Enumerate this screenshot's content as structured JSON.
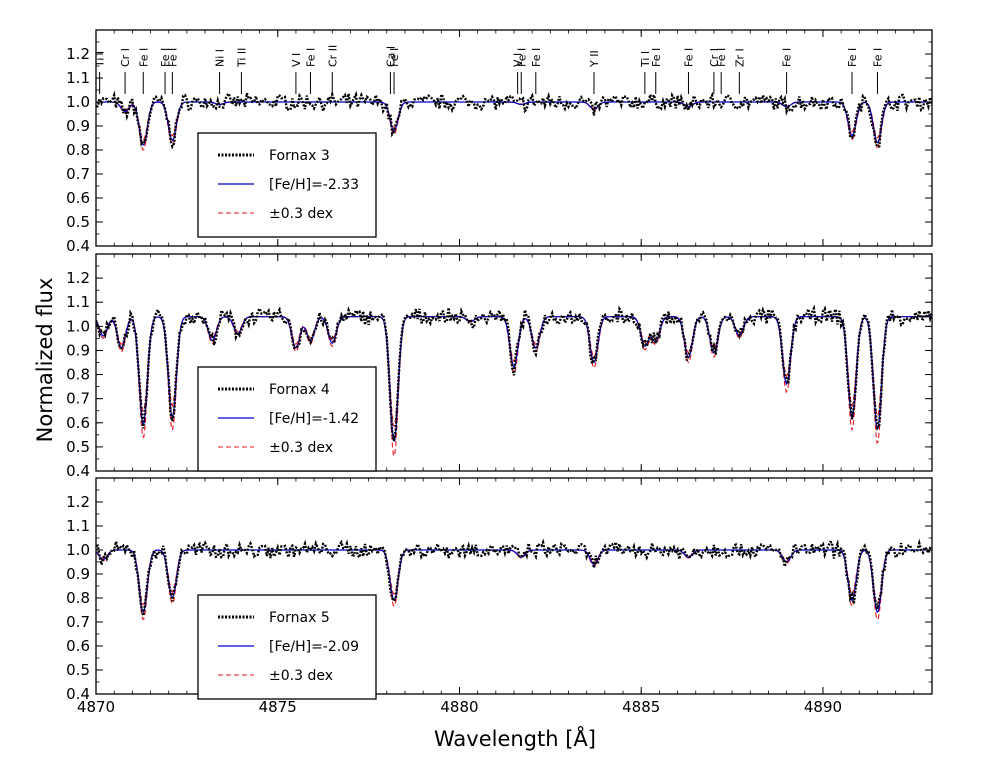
{
  "figure": {
    "xlabel": "Wavelength [Å]",
    "ylabel": "Normalized flux",
    "xlim": [
      4870,
      4893
    ],
    "ylim": [
      0.4,
      1.3
    ],
    "x_ticks": [
      4870,
      4875,
      4880,
      4885,
      4890
    ],
    "y_ticks": [
      0.4,
      0.5,
      0.6,
      0.7,
      0.8,
      0.9,
      1.0,
      1.1,
      1.2
    ]
  },
  "colors": {
    "observed": "#000000",
    "model": "#0000cc",
    "bounds": "#e8141b"
  },
  "line_ids": [
    {
      "wl": 4870.1,
      "label": "Ti I"
    },
    {
      "wl": 4870.8,
      "label": "Cr I"
    },
    {
      "wl": 4871.3,
      "label": "Fe I"
    },
    {
      "wl": 4871.9,
      "label": "Fe I"
    },
    {
      "wl": 4872.1,
      "label": "Fe I"
    },
    {
      "wl": 4873.4,
      "label": "Ni I"
    },
    {
      "wl": 4874.0,
      "label": "Ti II"
    },
    {
      "wl": 4875.5,
      "label": "V I"
    },
    {
      "wl": 4875.9,
      "label": "Fe I"
    },
    {
      "wl": 4876.5,
      "label": "Cr II"
    },
    {
      "wl": 4878.1,
      "label": "Ca I"
    },
    {
      "wl": 4878.2,
      "label": "Fe I"
    },
    {
      "wl": 4881.6,
      "label": "V I"
    },
    {
      "wl": 4881.7,
      "label": "Fe I"
    },
    {
      "wl": 4882.1,
      "label": "Fe I"
    },
    {
      "wl": 4883.7,
      "label": "Y II"
    },
    {
      "wl": 4885.1,
      "label": "Ti I"
    },
    {
      "wl": 4885.4,
      "label": "Fe I"
    },
    {
      "wl": 4886.3,
      "label": "Fe I"
    },
    {
      "wl": 4887.0,
      "label": "Cr I"
    },
    {
      "wl": 4887.2,
      "label": "Fe I"
    },
    {
      "wl": 4887.7,
      "label": "Zr I"
    },
    {
      "wl": 4889.0,
      "label": "Fe I"
    },
    {
      "wl": 4890.8,
      "label": "Fe I"
    },
    {
      "wl": 4891.5,
      "label": "Fe I"
    }
  ],
  "chart_data": [
    {
      "type": "line",
      "panel": "Fornax 3",
      "xlim": [
        4870,
        4893
      ],
      "ylim": [
        0.4,
        1.3
      ],
      "continuum": 1.0,
      "series": [
        {
          "name": "Fornax 3",
          "style": "dotted",
          "color": "#000000",
          "role": "observed"
        },
        {
          "name": "[Fe/H]=-2.33",
          "style": "solid",
          "color": "#0000cc",
          "role": "model"
        },
        {
          "name": "±0.3 dex",
          "style": "dashed",
          "color": "#e8141b",
          "role": "bounds"
        }
      ],
      "features": [
        {
          "wl": 4870.8,
          "min": 0.96
        },
        {
          "wl": 4871.3,
          "min": 0.82
        },
        {
          "wl": 4872.1,
          "min": 0.84
        },
        {
          "wl": 4873.4,
          "min": 0.99
        },
        {
          "wl": 4878.2,
          "min": 0.88
        },
        {
          "wl": 4881.7,
          "min": 0.99
        },
        {
          "wl": 4883.7,
          "min": 0.97
        },
        {
          "wl": 4886.3,
          "min": 0.98
        },
        {
          "wl": 4889.0,
          "min": 0.98
        },
        {
          "wl": 4890.8,
          "min": 0.86
        },
        {
          "wl": 4891.5,
          "min": 0.83
        }
      ]
    },
    {
      "type": "line",
      "panel": "Fornax 4",
      "xlim": [
        4870,
        4893
      ],
      "ylim": [
        0.4,
        1.3
      ],
      "continuum": 1.04,
      "series": [
        {
          "name": "Fornax 4",
          "style": "dotted",
          "color": "#000000",
          "role": "observed"
        },
        {
          "name": "[Fe/H]=-1.42",
          "style": "solid",
          "color": "#0000cc",
          "role": "model"
        },
        {
          "name": "±0.3 dex",
          "style": "dashed",
          "color": "#e8141b",
          "role": "bounds"
        }
      ],
      "features": [
        {
          "wl": 4870.2,
          "min": 0.96
        },
        {
          "wl": 4870.7,
          "min": 0.91
        },
        {
          "wl": 4871.3,
          "min": 0.59
        },
        {
          "wl": 4872.1,
          "min": 0.62
        },
        {
          "wl": 4873.2,
          "min": 0.94
        },
        {
          "wl": 4873.9,
          "min": 0.97
        },
        {
          "wl": 4875.5,
          "min": 0.91
        },
        {
          "wl": 4875.9,
          "min": 0.94
        },
        {
          "wl": 4876.5,
          "min": 0.93
        },
        {
          "wl": 4878.2,
          "min": 0.52
        },
        {
          "wl": 4880.3,
          "min": 1.02
        },
        {
          "wl": 4881.5,
          "min": 0.83
        },
        {
          "wl": 4882.1,
          "min": 0.91
        },
        {
          "wl": 4883.7,
          "min": 0.85
        },
        {
          "wl": 4885.1,
          "min": 0.92
        },
        {
          "wl": 4885.4,
          "min": 0.94
        },
        {
          "wl": 4886.3,
          "min": 0.87
        },
        {
          "wl": 4887.0,
          "min": 0.89
        },
        {
          "wl": 4887.7,
          "min": 0.96
        },
        {
          "wl": 4889.0,
          "min": 0.76
        },
        {
          "wl": 4890.8,
          "min": 0.62
        },
        {
          "wl": 4891.5,
          "min": 0.57
        }
      ]
    },
    {
      "type": "line",
      "panel": "Fornax 5",
      "xlim": [
        4870,
        4893
      ],
      "ylim": [
        0.4,
        1.3
      ],
      "continuum": 1.0,
      "series": [
        {
          "name": "Fornax 5",
          "style": "dotted",
          "color": "#000000",
          "role": "observed"
        },
        {
          "name": "[Fe/H]=-2.09",
          "style": "solid",
          "color": "#0000cc",
          "role": "model"
        },
        {
          "name": "±0.3 dex",
          "style": "dashed",
          "color": "#e8141b",
          "role": "bounds"
        }
      ],
      "features": [
        {
          "wl": 4870.2,
          "min": 0.96
        },
        {
          "wl": 4871.3,
          "min": 0.74
        },
        {
          "wl": 4872.1,
          "min": 0.8
        },
        {
          "wl": 4878.2,
          "min": 0.79
        },
        {
          "wl": 4881.7,
          "min": 0.97
        },
        {
          "wl": 4883.7,
          "min": 0.94
        },
        {
          "wl": 4886.3,
          "min": 0.97
        },
        {
          "wl": 4889.0,
          "min": 0.95
        },
        {
          "wl": 4890.8,
          "min": 0.79
        },
        {
          "wl": 4891.5,
          "min": 0.74
        }
      ]
    }
  ]
}
